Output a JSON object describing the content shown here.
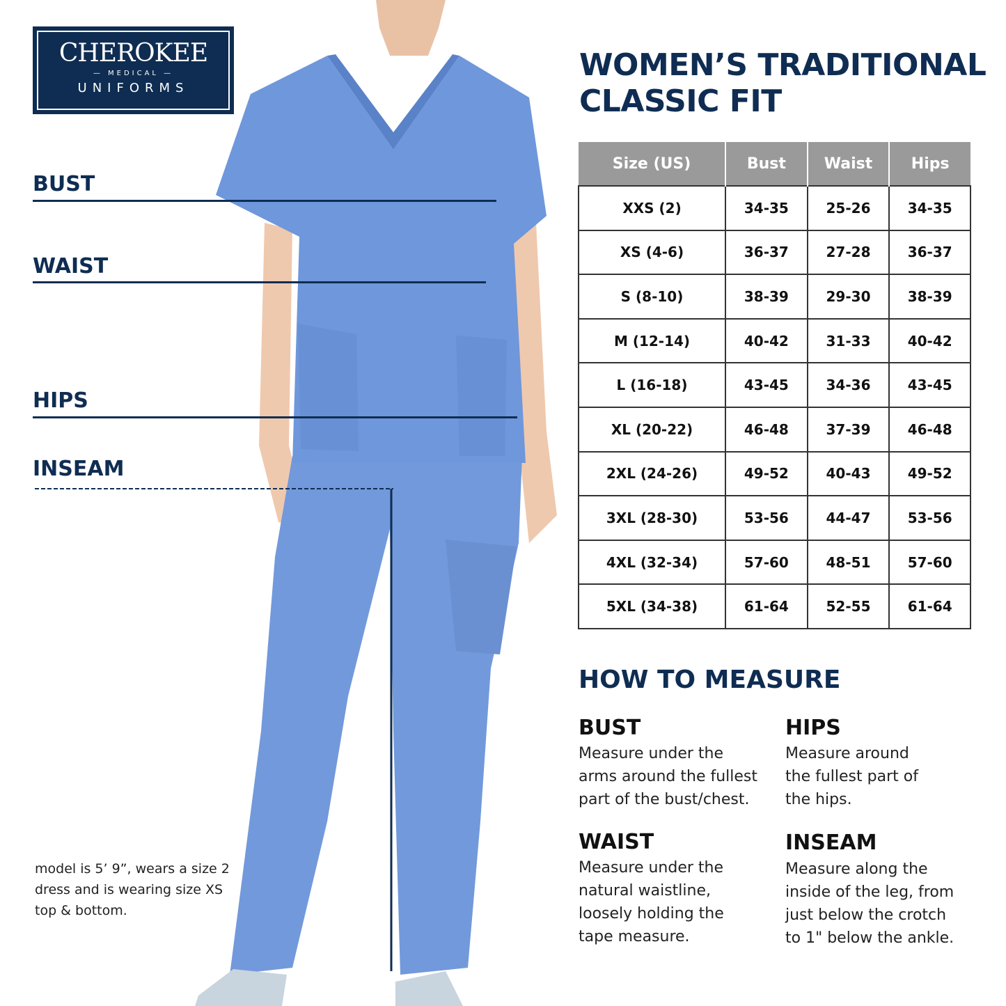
{
  "logo": {
    "brand": "CHEROKEE",
    "sub": "MEDICAL",
    "line2": "UNIFORMS",
    "colors": {
      "background": "#0f2d52",
      "text": "#ffffff"
    }
  },
  "figure_labels": {
    "bust": "BUST",
    "waist": "WAIST",
    "hips": "HIPS",
    "inseam": "INSEAM"
  },
  "title_line1": "WOMEN’S TRADITIONAL",
  "title_line2": "CLASSIC FIT",
  "size_table": {
    "headers": [
      "Size (US)",
      "Bust",
      "Waist",
      "Hips"
    ],
    "rows": [
      [
        "XXS (2)",
        "34-35",
        "25-26",
        "34-35"
      ],
      [
        "XS (4-6)",
        "36-37",
        "27-28",
        "36-37"
      ],
      [
        "S (8-10)",
        "38-39",
        "29-30",
        "38-39"
      ],
      [
        "M (12-14)",
        "40-42",
        "31-33",
        "40-42"
      ],
      [
        "L (16-18)",
        "43-45",
        "34-36",
        "43-45"
      ],
      [
        "XL (20-22)",
        "46-48",
        "37-39",
        "46-48"
      ],
      [
        "2XL (24-26)",
        "49-52",
        "40-43",
        "49-52"
      ],
      [
        "3XL (28-30)",
        "53-56",
        "44-47",
        "53-56"
      ],
      [
        "4XL (32-34)",
        "57-60",
        "48-51",
        "57-60"
      ],
      [
        "5XL (34-38)",
        "61-64",
        "52-55",
        "61-64"
      ]
    ]
  },
  "how_to_measure": {
    "title": "HOW TO MEASURE",
    "items": [
      {
        "label": "BUST",
        "lines": [
          "Measure under the",
          "arms around the fullest",
          "part of the bust/chest."
        ]
      },
      {
        "label": "HIPS",
        "lines": [
          "Measure around",
          "the fullest part of",
          "the hips."
        ]
      },
      {
        "label": "WAIST",
        "lines": [
          "Measure under the",
          "natural waistline,",
          "loosely holding the",
          "tape measure."
        ]
      },
      {
        "label": "INSEAM",
        "lines": [
          "Measure along the",
          "inside of the leg, from",
          "just below the crotch",
          "to 1\" below the ankle."
        ]
      }
    ]
  },
  "model_note": [
    "model is 5’ 9”, wears a size 2",
    "dress and is wearing size XS",
    "top & bottom."
  ],
  "colors": {
    "navy": "#0f2d52",
    "header_gray": "#9a9a9a",
    "scrub_blue": "#6f95d6"
  }
}
